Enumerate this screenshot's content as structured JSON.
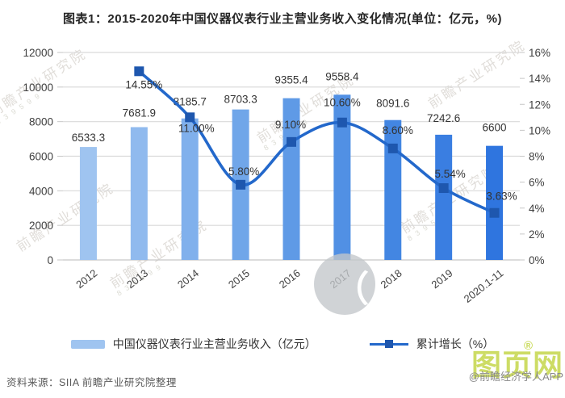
{
  "title": "图表1：2015-2020年中国仪器仪表行业主营业务收入变化情况(单位：亿元，%)",
  "source": "资料来源：SIIA 前瞻产业研究院整理",
  "watermark": {
    "diagonal_text": "前瞻产业研究院",
    "diagonal_digits": "8 3 9 5 9 9",
    "logo_text": "图页网",
    "logo_reg": "®",
    "credit": "@前瞻经济学人APP"
  },
  "legend": [
    {
      "label": "中国仪器仪表行业主营业务收入（亿元）",
      "type": "bar",
      "color": "#9fc4f0"
    },
    {
      "label": "累计增长（%）",
      "type": "line",
      "color": "#2368cb",
      "marker_color": "#1e57ae"
    }
  ],
  "chart_data": {
    "type": "bar+line combo",
    "categories": [
      "2012",
      "2013",
      "2014",
      "2015",
      "2016",
      "2017",
      "2018",
      "2019",
      "2020.1-11"
    ],
    "series": [
      {
        "name": "中国仪器仪表行业主营业务收入（亿元）",
        "type": "bar",
        "axis": "left",
        "values": [
          6533.3,
          7681.9,
          8185.7,
          8703.3,
          9355.4,
          9558.4,
          8091.6,
          7242.6,
          6600
        ],
        "value_labels": [
          "6533.3",
          "7681.9",
          "8185.7",
          "8703.3",
          "9355.4",
          "9558.4",
          "8091.6",
          "7242.6",
          "6600"
        ],
        "bar_colors": [
          "#9fc4f0",
          "#90baee",
          "#80b0ec",
          "#70a6e9",
          "#5f9ae6",
          "#5190e4",
          "#4386e2",
          "#3a7ee1",
          "#2f75df"
        ]
      },
      {
        "name": "累计增长（%）",
        "type": "line",
        "axis": "right",
        "values": [
          null,
          14.55,
          11.0,
          5.8,
          9.1,
          10.6,
          8.6,
          5.54,
          3.63
        ],
        "value_labels": [
          "",
          "14.55%",
          "11.00%",
          "5.80%",
          "9.10%",
          "10.60%",
          "8.60%",
          "5.54%",
          "3.63%"
        ],
        "line_color": "#2368cb",
        "marker_color": "#1e57ae"
      }
    ],
    "left_axis": {
      "min": 0,
      "max": 12000,
      "step": 2000,
      "ticks": [
        "12000",
        "10000",
        "8000",
        "6000",
        "4000",
        "2000",
        "0"
      ]
    },
    "right_axis": {
      "min": 0,
      "max": 16,
      "step": 2,
      "ticks": [
        "16%",
        "14%",
        "12%",
        "10%",
        "8%",
        "6%",
        "4%",
        "2%",
        "0%"
      ]
    },
    "grid": true,
    "grid_color": "#d9d9d9",
    "baseline_color": "#c6c6c6",
    "label_color": "#333333",
    "axis_text_color": "#404040",
    "legend_position": "bottom"
  }
}
